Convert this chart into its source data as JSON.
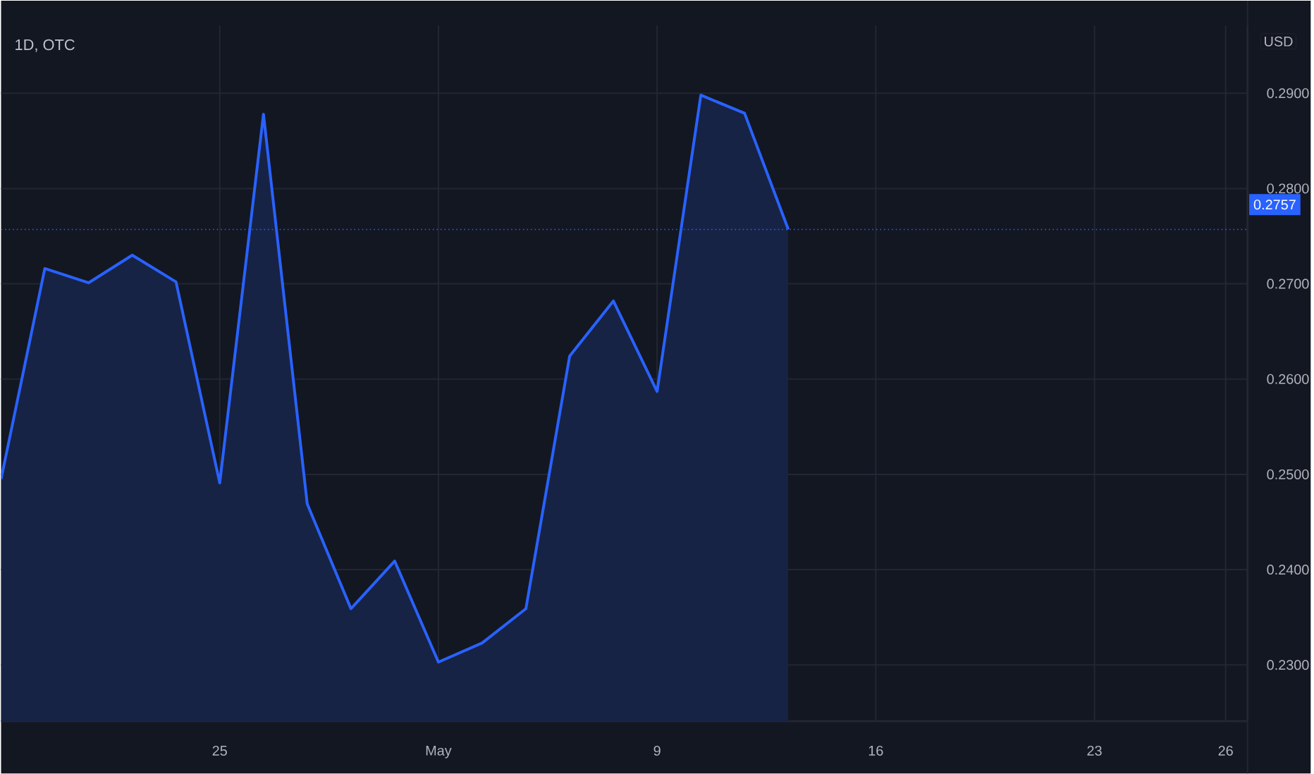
{
  "chart_data": {
    "type": "area",
    "title": "1D, OTC",
    "ylabel": "USD",
    "categories": [
      null,
      null,
      null,
      null,
      null,
      "25",
      null,
      null,
      null,
      null,
      "May",
      null,
      null,
      null,
      null,
      "9",
      null,
      null,
      null,
      null,
      "16",
      null,
      null,
      null,
      null,
      "23",
      null,
      null,
      "26"
    ],
    "series": [
      {
        "color": "#2962ff",
        "values": [
          0.2495,
          0.2716,
          0.2701,
          0.273,
          0.2702,
          0.2491,
          0.2878,
          0.2469,
          0.2359,
          0.2409,
          0.2303,
          0.2323,
          0.2359,
          0.2624,
          0.2682,
          0.2587,
          0.2898,
          0.2879,
          0.2757,
          null,
          null,
          null,
          null,
          null,
          null,
          null,
          null,
          null,
          null
        ]
      }
    ],
    "ylim": [
      0.2241,
      0.2971
    ],
    "yticks": [
      {
        "value": 0.23,
        "label": "0.2300"
      },
      {
        "value": 0.24,
        "label": "0.2400"
      },
      {
        "value": 0.25,
        "label": "0.2500"
      },
      {
        "value": 0.26,
        "label": "0.2600"
      },
      {
        "value": 0.27,
        "label": "0.2700"
      },
      {
        "value": 0.28,
        "label": "0.2800"
      },
      {
        "value": 0.29,
        "label": "0.2900"
      }
    ],
    "ref_lines": [
      {
        "axis": "y",
        "value": 0.2757,
        "label": "0.2757",
        "color": "#2962ff",
        "line_style": "dotted"
      }
    ],
    "grid": true,
    "marker": "none",
    "line_style": "solid"
  }
}
